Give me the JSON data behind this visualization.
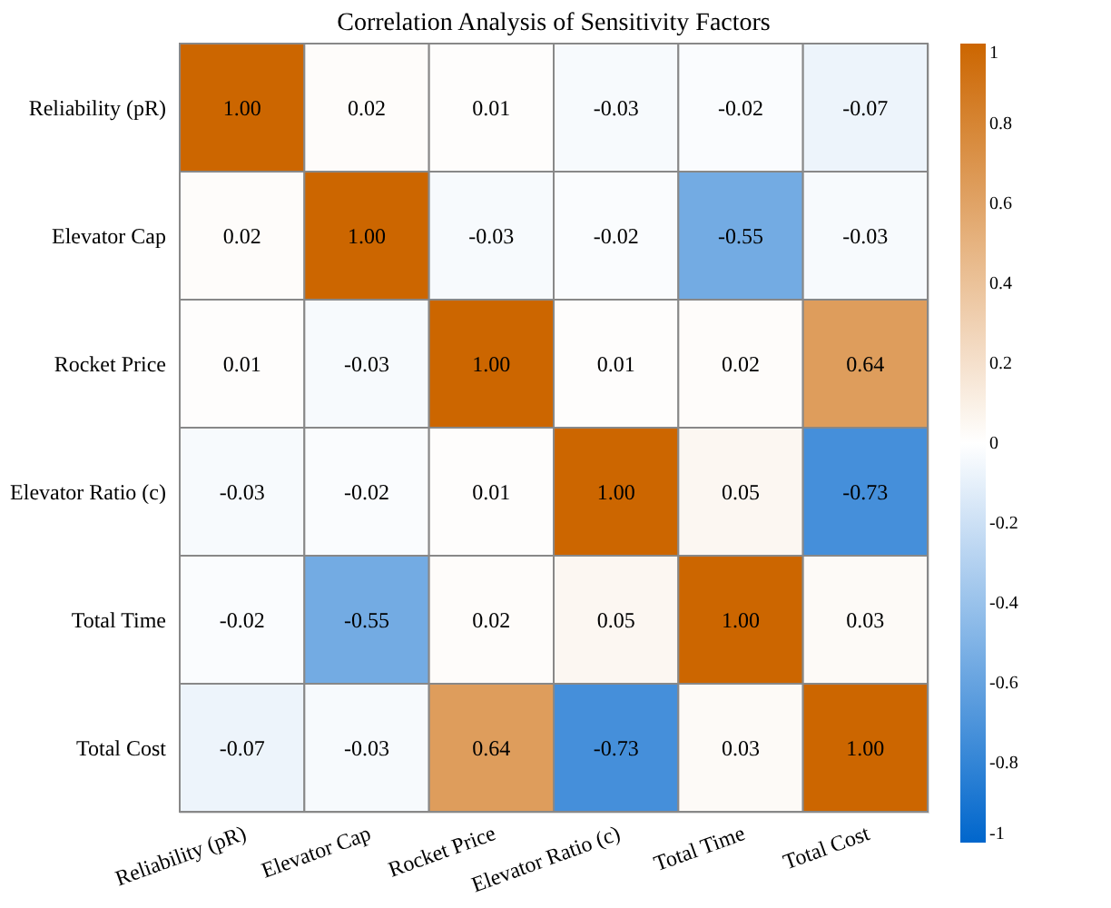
{
  "chart_data": {
    "type": "heatmap",
    "title": "Correlation Analysis of Sensitivity Factors",
    "categories": [
      "Reliability (pR)",
      "Elevator Cap",
      "Rocket Price",
      "Elevator Ratio (c)",
      "Total Time",
      "Total Cost"
    ],
    "y_categories": [
      "Reliability (pR)",
      "Elevator Cap",
      "Rocket Price",
      "Elevator Ratio (c)",
      "Total Time",
      "Total Cost"
    ],
    "cells": [
      [
        1.0,
        0.02,
        0.01,
        -0.03,
        -0.02,
        -0.07
      ],
      [
        0.02,
        1.0,
        -0.03,
        -0.02,
        -0.55,
        -0.03
      ],
      [
        0.01,
        -0.03,
        1.0,
        0.01,
        0.02,
        0.64
      ],
      [
        -0.03,
        -0.02,
        0.01,
        1.0,
        0.05,
        -0.73
      ],
      [
        -0.02,
        -0.55,
        0.02,
        0.05,
        1.0,
        0.03
      ],
      [
        -0.07,
        -0.03,
        0.64,
        -0.73,
        0.03,
        1.0
      ]
    ],
    "cell_labels": [
      [
        "1.00",
        "0.02",
        "0.01",
        "-0.03",
        "-0.02",
        "-0.07"
      ],
      [
        "0.02",
        "1.00",
        "-0.03",
        "-0.02",
        "-0.55",
        "-0.03"
      ],
      [
        "0.01",
        "-0.03",
        "1.00",
        "0.01",
        "0.02",
        "0.64"
      ],
      [
        "-0.03",
        "-0.02",
        "0.01",
        "1.00",
        "0.05",
        "-0.73"
      ],
      [
        "-0.02",
        "-0.55",
        "0.02",
        "0.05",
        "1.00",
        "0.03"
      ],
      [
        "-0.07",
        "-0.03",
        "0.64",
        "-0.73",
        "0.03",
        "1.00"
      ]
    ],
    "clim": [
      -1,
      1
    ],
    "cticks": [
      -1,
      -0.8,
      -0.6,
      -0.4,
      -0.2,
      0,
      0.2,
      0.4,
      0.6,
      0.8,
      1
    ],
    "colors": [
      "#0066cc",
      "#ffffff",
      "#cc6600"
    ]
  }
}
